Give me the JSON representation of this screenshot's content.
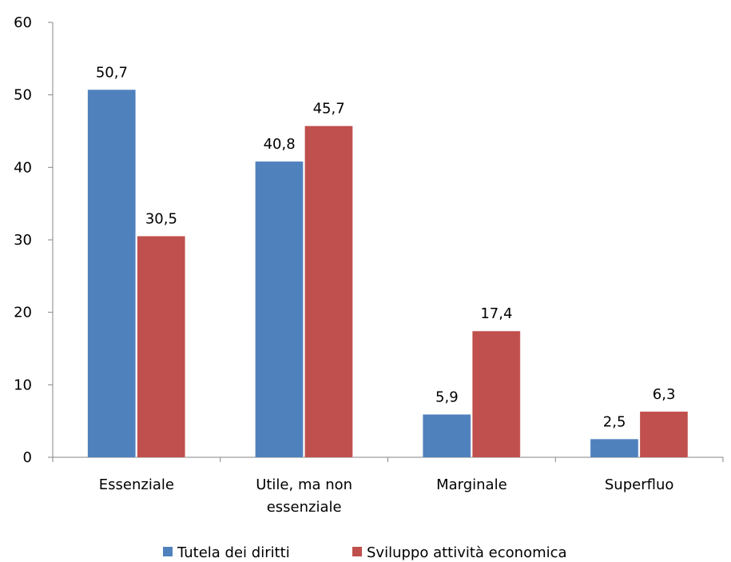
{
  "chart_data": {
    "type": "bar",
    "categories": [
      [
        "Essenziale"
      ],
      [
        "Utile, ma non",
        "essenziale"
      ],
      [
        "Marginale"
      ],
      [
        "Superfluo"
      ]
    ],
    "series": [
      {
        "name": "Tutela dei diritti",
        "color": "#4f81bd",
        "values": [
          50.7,
          40.8,
          5.9,
          2.5
        ],
        "labels": [
          "50,7",
          "40,8",
          "5,9",
          "2,5"
        ]
      },
      {
        "name": "Sviluppo attività economica",
        "color": "#c0504d",
        "values": [
          30.5,
          45.7,
          17.4,
          6.3
        ],
        "labels": [
          "30,5",
          "45,7",
          "17,4",
          "6,3"
        ]
      }
    ],
    "ylim": [
      0,
      60
    ],
    "yticks": [
      0,
      10,
      20,
      30,
      40,
      50,
      60
    ],
    "grid": false,
    "legend": "bottom"
  }
}
